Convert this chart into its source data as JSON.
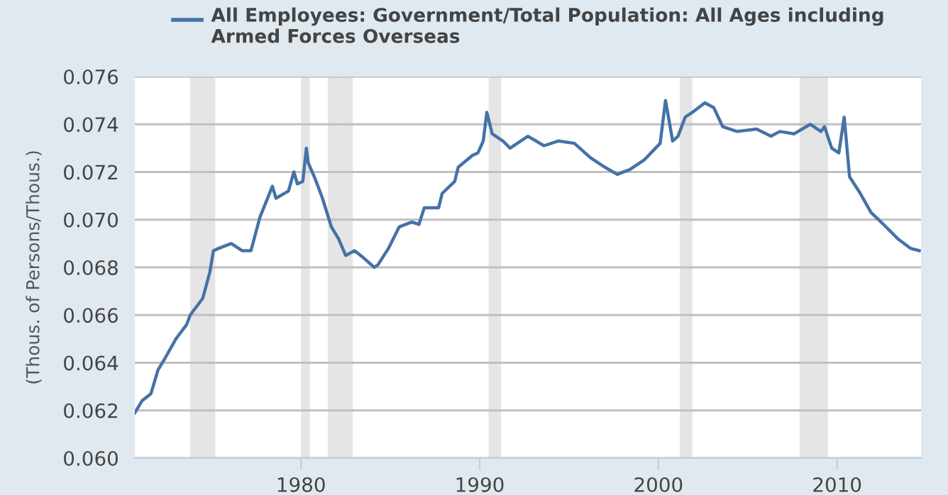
{
  "chart_data": {
    "type": "line",
    "ylabel": "(Thous. of Persons/Thous.)",
    "legend": "top",
    "grid": "y",
    "xlim": [
      1970.7,
      2014.7
    ],
    "xticks": [
      1980,
      1990,
      2000,
      2010
    ],
    "ylim": [
      0.06,
      0.076
    ],
    "yticks": [
      {
        "value": 0.06,
        "label": "0.060"
      },
      {
        "value": 0.062,
        "label": "0.062"
      },
      {
        "value": 0.064,
        "label": "0.064"
      },
      {
        "value": 0.066,
        "label": "0.066"
      },
      {
        "value": 0.068,
        "label": "0.068"
      },
      {
        "value": 0.07,
        "label": "0.070"
      },
      {
        "value": 0.072,
        "label": "0.072"
      },
      {
        "value": 0.074,
        "label": "0.074"
      },
      {
        "value": 0.076,
        "label": "0.076"
      }
    ],
    "bands": [
      {
        "axis": "x",
        "from": 1973.8,
        "to": 1975.2,
        "label": null,
        "color": "#e5e5e5"
      },
      {
        "axis": "x",
        "from": 1980.0,
        "to": 1980.5,
        "label": null,
        "color": "#e5e5e5"
      },
      {
        "axis": "x",
        "from": 1981.5,
        "to": 1982.9,
        "label": null,
        "color": "#e5e5e5"
      },
      {
        "axis": "x",
        "from": 1990.5,
        "to": 1991.2,
        "label": null,
        "color": "#e5e5e5"
      },
      {
        "axis": "x",
        "from": 2001.2,
        "to": 2001.9,
        "label": null,
        "color": "#e5e5e5"
      },
      {
        "axis": "x",
        "from": 2007.9,
        "to": 2009.5,
        "label": null,
        "color": "#e5e5e5"
      }
    ],
    "series": [
      {
        "name": "All Employees: Government/Total Population: All Ages including Armed Forces Overseas",
        "color": "#4572a7",
        "x": [
          1970.7,
          1971.1,
          1971.6,
          1972.0,
          1972.4,
          1973.0,
          1973.6,
          1973.8,
          1974.5,
          1974.9,
          1975.1,
          1975.4,
          1976.1,
          1976.7,
          1977.2,
          1977.7,
          1978.4,
          1978.6,
          1979.3,
          1979.6,
          1979.8,
          1980.1,
          1980.3,
          1980.4,
          1980.8,
          1981.2,
          1981.7,
          1982.1,
          1982.5,
          1983.0,
          1983.5,
          1984.1,
          1984.3,
          1984.9,
          1985.5,
          1986.2,
          1986.6,
          1986.9,
          1987.7,
          1987.9,
          1988.6,
          1988.8,
          1989.6,
          1989.9,
          1990.2,
          1990.4,
          1990.7,
          1991.3,
          1991.7,
          1992.7,
          1993.6,
          1994.4,
          1995.3,
          1996.2,
          1997.0,
          1997.7,
          1998.4,
          1999.2,
          2000.1,
          2000.4,
          2000.8,
          2001.1,
          2001.5,
          2001.9,
          2002.6,
          2003.1,
          2003.6,
          2004.4,
          2005.5,
          2006.3,
          2006.8,
          2007.6,
          2008.5,
          2009.1,
          2009.3,
          2009.7,
          2010.1,
          2010.4,
          2010.7,
          2011.3,
          2011.9,
          2012.6,
          2013.4,
          2014.1,
          2014.6
        ],
        "values": [
          0.0619,
          0.0624,
          0.0627,
          0.0637,
          0.0642,
          0.065,
          0.0656,
          0.066,
          0.0667,
          0.0678,
          0.0687,
          0.0688,
          0.069,
          0.0687,
          0.0687,
          0.0701,
          0.0714,
          0.0709,
          0.0712,
          0.072,
          0.0715,
          0.0716,
          0.073,
          0.0724,
          0.0717,
          0.0709,
          0.0697,
          0.0692,
          0.0685,
          0.0687,
          0.0684,
          0.068,
          0.0681,
          0.0688,
          0.0697,
          0.0699,
          0.0698,
          0.0705,
          0.0705,
          0.0711,
          0.0716,
          0.0722,
          0.0727,
          0.0728,
          0.0733,
          0.0745,
          0.0736,
          0.0733,
          0.073,
          0.0735,
          0.0731,
          0.0733,
          0.0732,
          0.0726,
          0.0722,
          0.0719,
          0.0721,
          0.0725,
          0.0732,
          0.075,
          0.0733,
          0.0735,
          0.0743,
          0.0745,
          0.0749,
          0.0747,
          0.0739,
          0.0737,
          0.0738,
          0.0735,
          0.0737,
          0.0736,
          0.074,
          0.0737,
          0.0739,
          0.073,
          0.0728,
          0.0743,
          0.0718,
          0.0711,
          0.0703,
          0.0698,
          0.0692,
          0.0688,
          0.0687
        ]
      }
    ]
  }
}
